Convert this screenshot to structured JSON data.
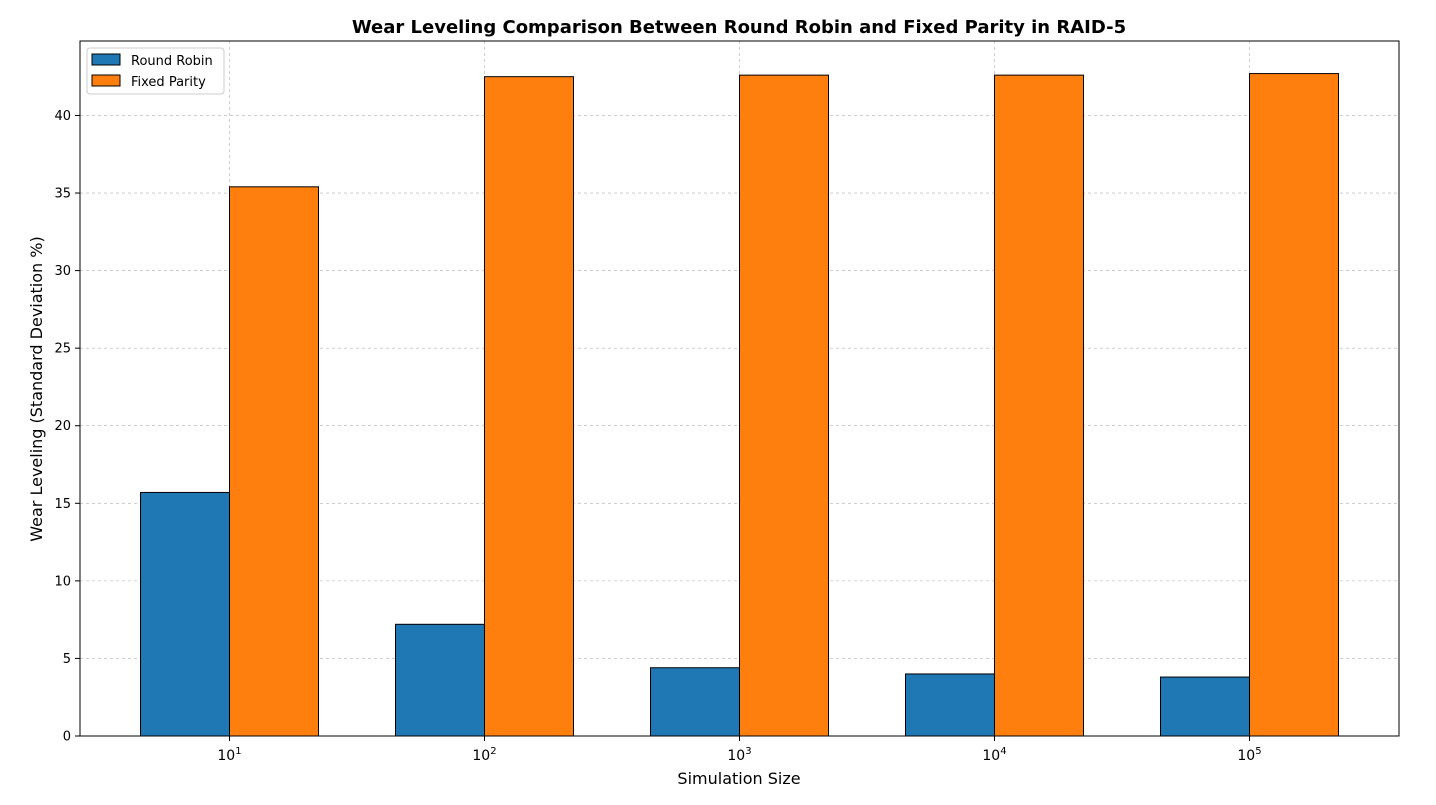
{
  "chart_data": {
    "type": "bar",
    "title": "Wear Leveling Comparison Between Round Robin and Fixed Parity in RAID-5",
    "xlabel": "Simulation Size",
    "ylabel": "Wear Leveling (Standard Deviation %)",
    "categories": [
      {
        "base": "10",
        "exp": "1"
      },
      {
        "base": "10",
        "exp": "2"
      },
      {
        "base": "10",
        "exp": "3"
      },
      {
        "base": "10",
        "exp": "4"
      },
      {
        "base": "10",
        "exp": "5"
      }
    ],
    "ylim": [
      0,
      44.8
    ],
    "yticks": [
      "0",
      "5",
      "10",
      "15",
      "20",
      "25",
      "30",
      "35",
      "40"
    ],
    "grid": true,
    "legend_position": "top-left",
    "series": [
      {
        "name": "Round Robin",
        "color": "#1f77b4",
        "values": [
          15.7,
          7.2,
          4.4,
          4.0,
          3.8
        ]
      },
      {
        "name": "Fixed Parity",
        "color": "#ff7f0e",
        "values": [
          35.4,
          42.5,
          42.6,
          42.6,
          42.7
        ]
      }
    ]
  }
}
